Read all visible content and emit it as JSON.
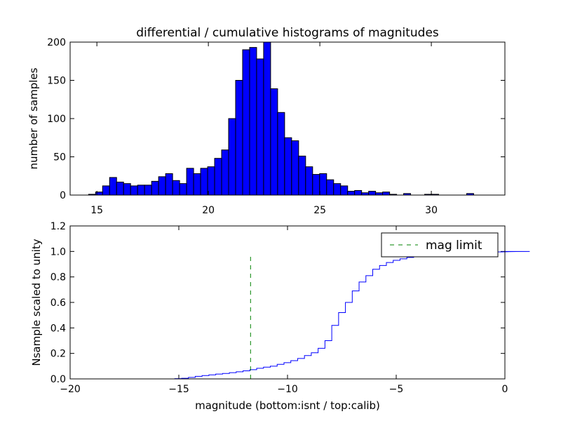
{
  "chart_data": [
    {
      "type": "bar",
      "subtype": "histogram",
      "title": "differential / cumulative histograms of magnitudes",
      "xlabel": "",
      "ylabel": "number of samples",
      "xlim": [
        13.8,
        33.3
      ],
      "ylim": [
        0,
        200
      ],
      "xticks": [
        15,
        20,
        25,
        30
      ],
      "yticks": [
        0,
        50,
        100,
        150,
        200
      ],
      "bin_start": 14.0,
      "bin_width": 0.314,
      "values": [
        0,
        0,
        1,
        4,
        12,
        23,
        17,
        15,
        12,
        13,
        13,
        18,
        24,
        28,
        19,
        15,
        35,
        28,
        35,
        37,
        48,
        59,
        100,
        150,
        190,
        193,
        178,
        200,
        139,
        108,
        75,
        71,
        51,
        37,
        27,
        28,
        20,
        15,
        12,
        5,
        6,
        3,
        5,
        3,
        4,
        1,
        0,
        2,
        0,
        0,
        1,
        1,
        0,
        0,
        0,
        0,
        2,
        0,
        0,
        0,
        0,
        0
      ],
      "bar_color": "#0000ff",
      "edge_color": "#000000"
    },
    {
      "type": "line",
      "subtype": "cumulative-step",
      "title": "",
      "xlabel": "magnitude (bottom:isnt / top:calib)",
      "ylabel": "Nsample scaled to unity",
      "xlim": [
        -20,
        0
      ],
      "ylim": [
        0.0,
        1.2
      ],
      "xticks": [
        -20,
        -15,
        -10,
        -5,
        0
      ],
      "yticks": [
        0.0,
        0.2,
        0.4,
        0.6,
        0.8,
        1.0,
        1.2
      ],
      "step_start": -15.5,
      "step_width": 0.314,
      "steps": [
        0.0,
        0.002,
        0.005,
        0.012,
        0.02,
        0.026,
        0.032,
        0.038,
        0.043,
        0.049,
        0.056,
        0.063,
        0.072,
        0.083,
        0.092,
        0.1,
        0.114,
        0.127,
        0.143,
        0.16,
        0.183,
        0.205,
        0.24,
        0.3,
        0.42,
        0.52,
        0.6,
        0.69,
        0.76,
        0.81,
        0.86,
        0.89,
        0.913,
        0.93,
        0.942,
        0.953,
        0.96,
        0.966,
        0.971,
        0.975,
        0.98,
        0.983,
        0.986,
        0.989,
        0.991,
        0.993,
        0.994,
        0.995,
        0.996,
        0.997,
        0.998,
        0.999,
        0.999,
        1.0
      ],
      "step_end_drop": [
        0,
        1.0
      ],
      "line_color": "#0000ff",
      "mag_limit": {
        "x": -11.7,
        "y0": 0.0,
        "y1": 0.97,
        "color": "#008000",
        "label": "mag limit"
      },
      "legend": "top-right"
    }
  ]
}
